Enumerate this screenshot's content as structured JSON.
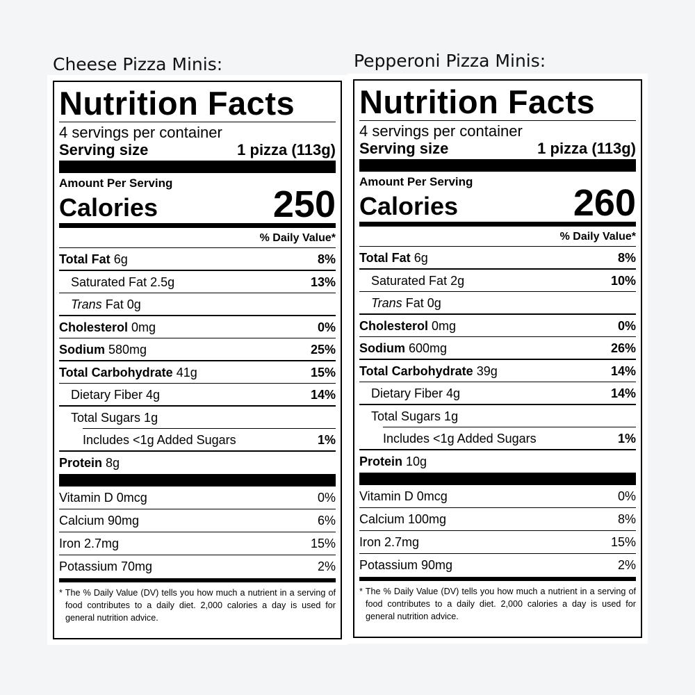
{
  "labels": [
    {
      "caption": "Cheese Pizza Minis:",
      "title": "Nutrition Facts",
      "servings": "4 servings per container",
      "serving_size_label": "Serving size",
      "serving_size": "1 pizza (113g)",
      "amount_per_serving": "Amount Per Serving",
      "calories_label": "Calories",
      "calories": 250,
      "dv_header": "% Daily Value*",
      "nutrients": [
        {
          "name": "Total Fat",
          "amount": "6g",
          "dv": "8%",
          "bold": true,
          "level": 0
        },
        {
          "name": "Saturated Fat 2.5g",
          "dv": "13%",
          "bold": false,
          "level": 1
        },
        {
          "italic": "Trans",
          "name": "Fat 0g",
          "bold": false,
          "level": 1
        },
        {
          "name": "Cholesterol",
          "amount": "0mg",
          "dv": "0%",
          "bold": true,
          "level": 0
        },
        {
          "name": "Sodium",
          "amount": "580mg",
          "dv": "25%",
          "bold": true,
          "level": 0
        },
        {
          "name": "Total Carbohydrate",
          "amount": "41g",
          "dv": "15%",
          "bold": true,
          "level": 0
        },
        {
          "name": "Dietary Fiber 4g",
          "dv": "14%",
          "bold": false,
          "level": 1
        },
        {
          "name": "Total Sugars 1g",
          "bold": false,
          "level": 1
        },
        {
          "name": "Includes <1g Added Sugars",
          "dv": "1%",
          "bold": false,
          "level": 2
        },
        {
          "name": "Protein",
          "amount": "8g",
          "bold": true,
          "level": 0
        }
      ],
      "vitamins": [
        {
          "name": "Vitamin D 0mcg",
          "dv": "0%"
        },
        {
          "name": "Calcium 90mg",
          "dv": "6%"
        },
        {
          "name": "Iron 2.7mg",
          "dv": "15%"
        },
        {
          "name": "Potassium 70mg",
          "dv": "2%"
        }
      ],
      "footnote": "* The % Daily Value (DV) tells you how much a nutrient in a serving of food contributes to a daily diet. 2,000 calories a day is used for general nutrition advice."
    },
    {
      "caption": "Pepperoni Pizza Minis:",
      "title": "Nutrition Facts",
      "servings": "4 servings per container",
      "serving_size_label": "Serving size",
      "serving_size": "1 pizza (113g)",
      "amount_per_serving": "Amount Per Serving",
      "calories_label": "Calories",
      "calories": 260,
      "dv_header": "% Daily Value*",
      "nutrients": [
        {
          "name": "Total Fat",
          "amount": "6g",
          "dv": "8%",
          "bold": true,
          "level": 0
        },
        {
          "name": "Saturated Fat 2g",
          "dv": "10%",
          "bold": false,
          "level": 1
        },
        {
          "italic": "Trans",
          "name": "Fat 0g",
          "bold": false,
          "level": 1
        },
        {
          "name": "Cholesterol",
          "amount": "0mg",
          "dv": "0%",
          "bold": true,
          "level": 0
        },
        {
          "name": "Sodium",
          "amount": "600mg",
          "dv": "26%",
          "bold": true,
          "level": 0
        },
        {
          "name": "Total Carbohydrate",
          "amount": "39g",
          "dv": "14%",
          "bold": true,
          "level": 0
        },
        {
          "name": "Dietary Fiber 4g",
          "dv": "14%",
          "bold": false,
          "level": 1
        },
        {
          "name": "Total Sugars 1g",
          "bold": false,
          "level": 1
        },
        {
          "name": "Includes <1g Added Sugars",
          "dv": "1%",
          "bold": false,
          "level": 2
        },
        {
          "name": "Protein",
          "amount": "10g",
          "bold": true,
          "level": 0
        }
      ],
      "vitamins": [
        {
          "name": "Vitamin D 0mcg",
          "dv": "0%"
        },
        {
          "name": "Calcium 100mg",
          "dv": "8%"
        },
        {
          "name": "Iron 2.7mg",
          "dv": "15%"
        },
        {
          "name": "Potassium 90mg",
          "dv": "2%"
        }
      ],
      "footnote": "* The % Daily Value (DV) tells you how much a nutrient in a serving of food contributes to a daily diet. 2,000 calories a day is used for general nutrition advice."
    }
  ]
}
